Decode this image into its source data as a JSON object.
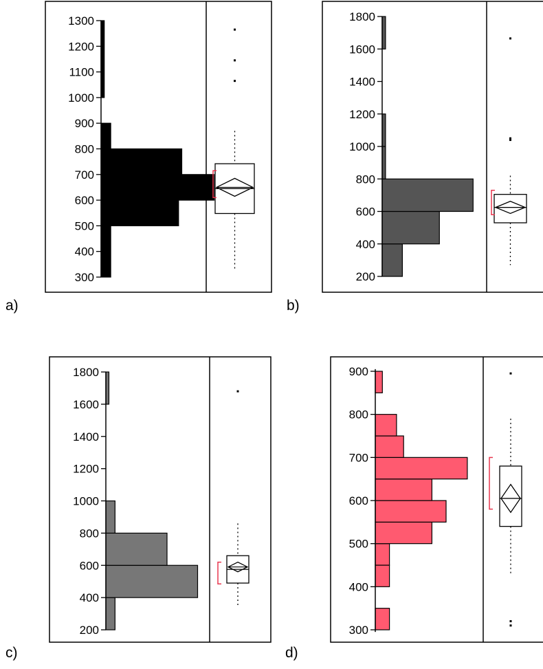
{
  "panel_labels": [
    "a)",
    "b)",
    "c)",
    "d)"
  ],
  "chart_data": [
    {
      "label": "a)",
      "type": "bar",
      "orientation": "horizontal-histogram-with-boxplot",
      "color": "#000000",
      "bin_edges": [
        300,
        500,
        600,
        700,
        800,
        900,
        1000,
        1300
      ],
      "counts": [
        3,
        24,
        35,
        25,
        3,
        0,
        1
      ],
      "y_ticks": [
        300,
        400,
        500,
        600,
        700,
        800,
        900,
        1000,
        1100,
        1200,
        1300
      ],
      "ylim": [
        300,
        1300
      ],
      "grid": false,
      "boxplot": {
        "whisker_low": 330,
        "q1": 548,
        "median": 645,
        "q3": 742,
        "whisker_high": 870,
        "mean": 650,
        "ci": [
          615,
          685
        ],
        "outliers": [
          1065,
          1145,
          1265
        ],
        "shortest_half": [
          610,
          715
        ]
      }
    },
    {
      "label": "b)",
      "type": "bar",
      "orientation": "horizontal-histogram-with-boxplot",
      "color": "#555555",
      "bin_edges": [
        200,
        400,
        600,
        800,
        1000,
        1200,
        1600,
        1800
      ],
      "counts": [
        6,
        17,
        27,
        1,
        1,
        0,
        1
      ],
      "y_ticks": [
        200,
        400,
        600,
        800,
        1000,
        1200,
        1400,
        1600,
        1800
      ],
      "ylim": [
        200,
        1800
      ],
      "grid": false,
      "boxplot": {
        "whisker_low": 270,
        "q1": 530,
        "median": 625,
        "q3": 705,
        "whisker_high": 820,
        "mean": 625,
        "ci": [
          585,
          660
        ],
        "outliers": [
          1040,
          1050,
          1665
        ],
        "shortest_half": [
          580,
          730
        ]
      }
    },
    {
      "label": "c)",
      "type": "bar",
      "orientation": "horizontal-histogram-with-boxplot",
      "color": "#777777",
      "bin_edges": [
        200,
        400,
        600,
        800,
        1000,
        1600,
        1800
      ],
      "counts": [
        3,
        30,
        20,
        3,
        0,
        1
      ],
      "y_ticks": [
        200,
        400,
        600,
        800,
        1000,
        1200,
        1400,
        1600,
        1800
      ],
      "ylim": [
        200,
        1800
      ],
      "grid": false,
      "boxplot": {
        "whisker_low": 340,
        "q1": 490,
        "median": 575,
        "q3": 660,
        "whisker_high": 860,
        "mean": 590,
        "ci": [
          560,
          620
        ],
        "outliers": [
          1680
        ],
        "shortest_half": [
          485,
          620
        ]
      }
    },
    {
      "label": "d)",
      "type": "bar",
      "orientation": "horizontal-histogram-with-boxplot",
      "color": "#ff5a70",
      "bin_edges": [
        300,
        350,
        400,
        450,
        500,
        550,
        600,
        650,
        700,
        750,
        800,
        850,
        900
      ],
      "counts": [
        2,
        0,
        2,
        2,
        8,
        10,
        8,
        13,
        4,
        3,
        0,
        1
      ],
      "y_ticks": [
        300,
        400,
        500,
        600,
        700,
        800,
        900
      ],
      "ylim": [
        295,
        905
      ],
      "grid": false,
      "boxplot": {
        "whisker_low": 430,
        "q1": 540,
        "median": 605,
        "q3": 680,
        "whisker_high": 790,
        "mean": 605,
        "ci": [
          575,
          640
        ],
        "outliers": [
          310,
          320,
          895
        ],
        "shortest_half": [
          580,
          700
        ]
      }
    }
  ]
}
